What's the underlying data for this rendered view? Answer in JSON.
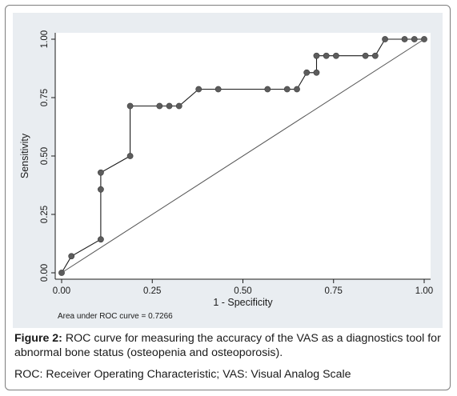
{
  "chart_data": {
    "type": "line",
    "xlabel": "1 - Specificity",
    "ylabel": "Sensitivity",
    "xlim": [
      0,
      1
    ],
    "ylim": [
      0,
      1
    ],
    "x_ticks": [
      "0.00",
      "0.25",
      "0.50",
      "0.75",
      "1.00"
    ],
    "y_ticks": [
      "0.00",
      "0.25",
      "0.50",
      "0.75",
      "1.00"
    ],
    "grid": false,
    "annotation": "Area under ROC curve = 0.7266",
    "series": [
      {
        "x": [
          0.0,
          0.027,
          0.108,
          0.108,
          0.108,
          0.189,
          0.189,
          0.27,
          0.297,
          0.324,
          0.378,
          0.432,
          0.568,
          0.622,
          0.649,
          0.676,
          0.703,
          0.703,
          0.73,
          0.757,
          0.838,
          0.865,
          0.892,
          0.946,
          0.973,
          1.0
        ],
        "y": [
          0.0,
          0.071,
          0.143,
          0.357,
          0.429,
          0.5,
          0.714,
          0.714,
          0.714,
          0.714,
          0.786,
          0.786,
          0.786,
          0.786,
          0.786,
          0.857,
          0.857,
          0.929,
          0.929,
          0.929,
          0.929,
          0.929,
          1.0,
          1.0,
          1.0,
          1.0
        ]
      },
      {
        "x": [
          0,
          1
        ],
        "y": [
          0,
          1
        ]
      }
    ],
    "colors": {
      "panel": "#e9edf1",
      "curve": "#1a1a1a",
      "marker": "#5c5c5c",
      "reference": "#555555"
    }
  },
  "caption": {
    "figure_label": "Figure 2:",
    "figure_text": " ROC curve for measuring the accuracy of the VAS as a diagnostics tool for abnormal bone status (osteopenia and osteoporosis).",
    "abbreviations": "ROC: Receiver Operating Characteristic; VAS: Visual Analog Scale"
  }
}
